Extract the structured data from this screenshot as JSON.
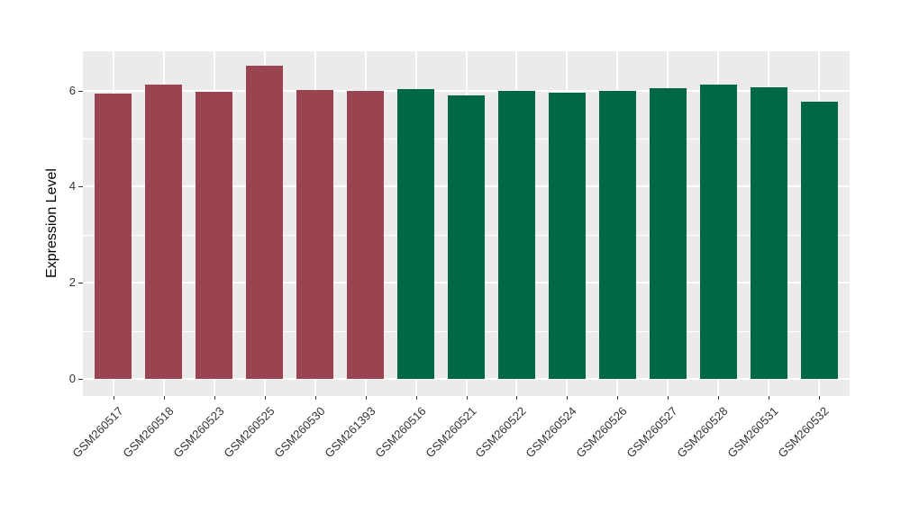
{
  "chart_data": {
    "type": "bar",
    "title": "",
    "xlabel": "",
    "ylabel": "Expression Level",
    "categories": [
      "GSM260517",
      "GSM260518",
      "GSM260523",
      "GSM260525",
      "GSM260530",
      "GSM261393",
      "GSM260516",
      "GSM260521",
      "GSM260522",
      "GSM260524",
      "GSM260526",
      "GSM260527",
      "GSM260528",
      "GSM260531",
      "GSM260532"
    ],
    "values": [
      5.93,
      6.12,
      5.98,
      6.51,
      6.01,
      6.0,
      6.03,
      5.89,
      6.0,
      5.95,
      6.0,
      6.05,
      6.12,
      6.07,
      5.77
    ],
    "bar_colors": [
      "#9B4451",
      "#9B4451",
      "#9B4451",
      "#9B4451",
      "#9B4451",
      "#9B4451",
      "#006747",
      "#006747",
      "#006747",
      "#006747",
      "#006747",
      "#006747",
      "#006747",
      "#006747",
      "#006747"
    ],
    "groups": [
      {
        "color": "#9B4451",
        "samples": [
          "GSM260517",
          "GSM260518",
          "GSM260523",
          "GSM260525",
          "GSM260530",
          "GSM261393"
        ]
      },
      {
        "color": "#006747",
        "samples": [
          "GSM260516",
          "GSM260521",
          "GSM260522",
          "GSM260524",
          "GSM260526",
          "GSM260527",
          "GSM260528",
          "GSM260531",
          "GSM260532"
        ]
      }
    ],
    "ylim": [
      0,
      6.85
    ],
    "yticks": [
      0,
      2,
      4,
      6
    ],
    "yticks_minor": [
      1,
      3,
      5
    ],
    "grid": "major and minor white gridlines on gray panel",
    "legend_position": "none",
    "x_label_rotation_deg": 45,
    "style": {
      "panel_background": "#EBEBEB",
      "grid_color": "#FFFFFF",
      "figure_background": "#FFFFFF",
      "tick_label_color": "#333333",
      "axis_title_color": "#000000",
      "tick_mark_color": "#333333"
    }
  }
}
